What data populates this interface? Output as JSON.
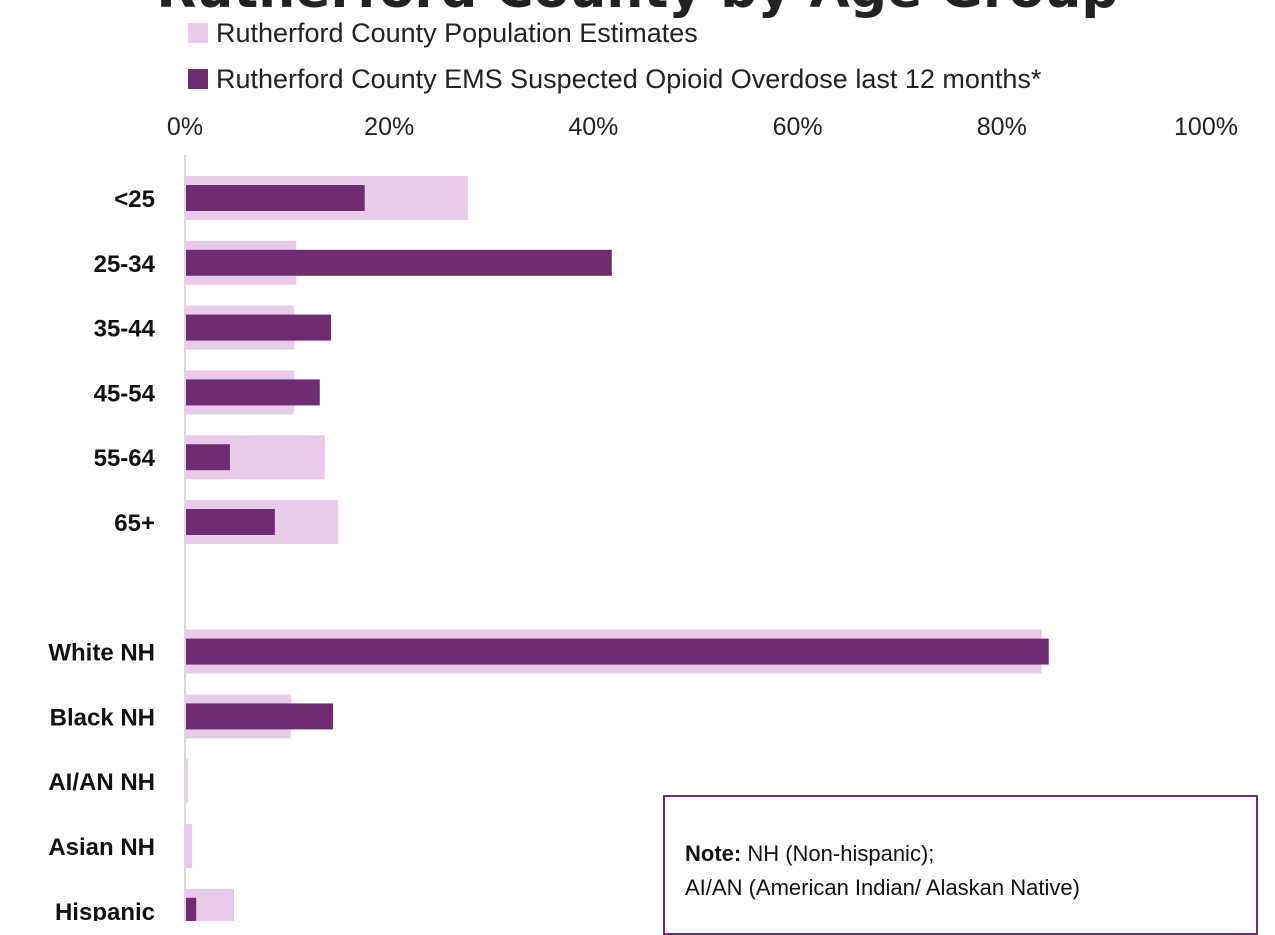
{
  "colors": {
    "population": "#e8cbe8",
    "ems": "#6f2c73",
    "axis": "#d9d9d9",
    "note_border": "#6f2c73"
  },
  "header": {
    "title_partial": "Rutherford County by Age Group"
  },
  "note": {
    "label": "Note:",
    "line1": " NH (Non-hispanic);",
    "line2": "AI/AN (American Indian/ Alaskan Native)"
  },
  "chart_data": {
    "type": "bar",
    "orientation": "horizontal",
    "xlim": [
      0,
      100
    ],
    "x_ticks": [
      "0%",
      "20%",
      "40%",
      "60%",
      "80%",
      "100%"
    ],
    "x_tick_values": [
      0,
      20,
      40,
      60,
      80,
      100
    ],
    "legend_placement": "top",
    "categories": [
      "<25",
      "25-34",
      "35-44",
      "45-54",
      "55-64",
      "65+",
      "",
      "White NH",
      "Black NH",
      "AI/AN NH",
      "Asian NH",
      "Hispanic"
    ],
    "series": [
      {
        "name": "Rutherford County Population Estimates",
        "values": [
          27.7,
          10.9,
          10.7,
          10.7,
          13.7,
          15.0,
          null,
          83.9,
          10.4,
          0.3,
          0.7,
          4.8
        ]
      },
      {
        "name": "Rutherford County EMS Suspected Opioid Overdose last 12 months*",
        "values": [
          17.6,
          41.8,
          14.3,
          13.2,
          4.4,
          8.8,
          null,
          84.6,
          14.5,
          0.0,
          0.0,
          1.1
        ]
      }
    ]
  }
}
